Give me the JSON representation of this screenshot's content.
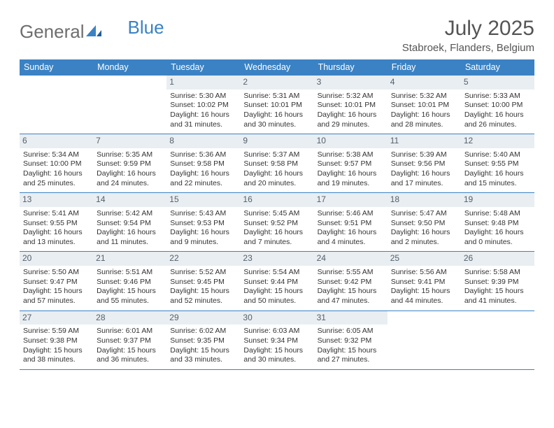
{
  "brand": {
    "part1": "General",
    "part2": "Blue"
  },
  "title": "July 2025",
  "location": "Stabroek, Flanders, Belgium",
  "colors": {
    "header_bg": "#3b82c4",
    "header_text": "#ffffff",
    "daynum_bg": "#e9eef2",
    "daynum_text": "#55606a",
    "body_text": "#333333",
    "row_border": "#3b82c4",
    "page_bg": "#ffffff",
    "title_text": "#555555",
    "logo_gray": "#6e6e6e",
    "logo_blue": "#3b82c4"
  },
  "dayNames": [
    "Sunday",
    "Monday",
    "Tuesday",
    "Wednesday",
    "Thursday",
    "Friday",
    "Saturday"
  ],
  "weeks": [
    [
      {
        "day": "",
        "empty": true
      },
      {
        "day": "",
        "empty": true
      },
      {
        "day": "1",
        "sunrise": "Sunrise: 5:30 AM",
        "sunset": "Sunset: 10:02 PM",
        "dl1": "Daylight: 16 hours",
        "dl2": "and 31 minutes."
      },
      {
        "day": "2",
        "sunrise": "Sunrise: 5:31 AM",
        "sunset": "Sunset: 10:01 PM",
        "dl1": "Daylight: 16 hours",
        "dl2": "and 30 minutes."
      },
      {
        "day": "3",
        "sunrise": "Sunrise: 5:32 AM",
        "sunset": "Sunset: 10:01 PM",
        "dl1": "Daylight: 16 hours",
        "dl2": "and 29 minutes."
      },
      {
        "day": "4",
        "sunrise": "Sunrise: 5:32 AM",
        "sunset": "Sunset: 10:01 PM",
        "dl1": "Daylight: 16 hours",
        "dl2": "and 28 minutes."
      },
      {
        "day": "5",
        "sunrise": "Sunrise: 5:33 AM",
        "sunset": "Sunset: 10:00 PM",
        "dl1": "Daylight: 16 hours",
        "dl2": "and 26 minutes."
      }
    ],
    [
      {
        "day": "6",
        "sunrise": "Sunrise: 5:34 AM",
        "sunset": "Sunset: 10:00 PM",
        "dl1": "Daylight: 16 hours",
        "dl2": "and 25 minutes."
      },
      {
        "day": "7",
        "sunrise": "Sunrise: 5:35 AM",
        "sunset": "Sunset: 9:59 PM",
        "dl1": "Daylight: 16 hours",
        "dl2": "and 24 minutes."
      },
      {
        "day": "8",
        "sunrise": "Sunrise: 5:36 AM",
        "sunset": "Sunset: 9:58 PM",
        "dl1": "Daylight: 16 hours",
        "dl2": "and 22 minutes."
      },
      {
        "day": "9",
        "sunrise": "Sunrise: 5:37 AM",
        "sunset": "Sunset: 9:58 PM",
        "dl1": "Daylight: 16 hours",
        "dl2": "and 20 minutes."
      },
      {
        "day": "10",
        "sunrise": "Sunrise: 5:38 AM",
        "sunset": "Sunset: 9:57 PM",
        "dl1": "Daylight: 16 hours",
        "dl2": "and 19 minutes."
      },
      {
        "day": "11",
        "sunrise": "Sunrise: 5:39 AM",
        "sunset": "Sunset: 9:56 PM",
        "dl1": "Daylight: 16 hours",
        "dl2": "and 17 minutes."
      },
      {
        "day": "12",
        "sunrise": "Sunrise: 5:40 AM",
        "sunset": "Sunset: 9:55 PM",
        "dl1": "Daylight: 16 hours",
        "dl2": "and 15 minutes."
      }
    ],
    [
      {
        "day": "13",
        "sunrise": "Sunrise: 5:41 AM",
        "sunset": "Sunset: 9:55 PM",
        "dl1": "Daylight: 16 hours",
        "dl2": "and 13 minutes."
      },
      {
        "day": "14",
        "sunrise": "Sunrise: 5:42 AM",
        "sunset": "Sunset: 9:54 PM",
        "dl1": "Daylight: 16 hours",
        "dl2": "and 11 minutes."
      },
      {
        "day": "15",
        "sunrise": "Sunrise: 5:43 AM",
        "sunset": "Sunset: 9:53 PM",
        "dl1": "Daylight: 16 hours",
        "dl2": "and 9 minutes."
      },
      {
        "day": "16",
        "sunrise": "Sunrise: 5:45 AM",
        "sunset": "Sunset: 9:52 PM",
        "dl1": "Daylight: 16 hours",
        "dl2": "and 7 minutes."
      },
      {
        "day": "17",
        "sunrise": "Sunrise: 5:46 AM",
        "sunset": "Sunset: 9:51 PM",
        "dl1": "Daylight: 16 hours",
        "dl2": "and 4 minutes."
      },
      {
        "day": "18",
        "sunrise": "Sunrise: 5:47 AM",
        "sunset": "Sunset: 9:50 PM",
        "dl1": "Daylight: 16 hours",
        "dl2": "and 2 minutes."
      },
      {
        "day": "19",
        "sunrise": "Sunrise: 5:48 AM",
        "sunset": "Sunset: 9:48 PM",
        "dl1": "Daylight: 16 hours",
        "dl2": "and 0 minutes."
      }
    ],
    [
      {
        "day": "20",
        "sunrise": "Sunrise: 5:50 AM",
        "sunset": "Sunset: 9:47 PM",
        "dl1": "Daylight: 15 hours",
        "dl2": "and 57 minutes."
      },
      {
        "day": "21",
        "sunrise": "Sunrise: 5:51 AM",
        "sunset": "Sunset: 9:46 PM",
        "dl1": "Daylight: 15 hours",
        "dl2": "and 55 minutes."
      },
      {
        "day": "22",
        "sunrise": "Sunrise: 5:52 AM",
        "sunset": "Sunset: 9:45 PM",
        "dl1": "Daylight: 15 hours",
        "dl2": "and 52 minutes."
      },
      {
        "day": "23",
        "sunrise": "Sunrise: 5:54 AM",
        "sunset": "Sunset: 9:44 PM",
        "dl1": "Daylight: 15 hours",
        "dl2": "and 50 minutes."
      },
      {
        "day": "24",
        "sunrise": "Sunrise: 5:55 AM",
        "sunset": "Sunset: 9:42 PM",
        "dl1": "Daylight: 15 hours",
        "dl2": "and 47 minutes."
      },
      {
        "day": "25",
        "sunrise": "Sunrise: 5:56 AM",
        "sunset": "Sunset: 9:41 PM",
        "dl1": "Daylight: 15 hours",
        "dl2": "and 44 minutes."
      },
      {
        "day": "26",
        "sunrise": "Sunrise: 5:58 AM",
        "sunset": "Sunset: 9:39 PM",
        "dl1": "Daylight: 15 hours",
        "dl2": "and 41 minutes."
      }
    ],
    [
      {
        "day": "27",
        "sunrise": "Sunrise: 5:59 AM",
        "sunset": "Sunset: 9:38 PM",
        "dl1": "Daylight: 15 hours",
        "dl2": "and 38 minutes."
      },
      {
        "day": "28",
        "sunrise": "Sunrise: 6:01 AM",
        "sunset": "Sunset: 9:37 PM",
        "dl1": "Daylight: 15 hours",
        "dl2": "and 36 minutes."
      },
      {
        "day": "29",
        "sunrise": "Sunrise: 6:02 AM",
        "sunset": "Sunset: 9:35 PM",
        "dl1": "Daylight: 15 hours",
        "dl2": "and 33 minutes."
      },
      {
        "day": "30",
        "sunrise": "Sunrise: 6:03 AM",
        "sunset": "Sunset: 9:34 PM",
        "dl1": "Daylight: 15 hours",
        "dl2": "and 30 minutes."
      },
      {
        "day": "31",
        "sunrise": "Sunrise: 6:05 AM",
        "sunset": "Sunset: 9:32 PM",
        "dl1": "Daylight: 15 hours",
        "dl2": "and 27 minutes."
      },
      {
        "day": "",
        "empty": true
      },
      {
        "day": "",
        "empty": true
      }
    ]
  ]
}
